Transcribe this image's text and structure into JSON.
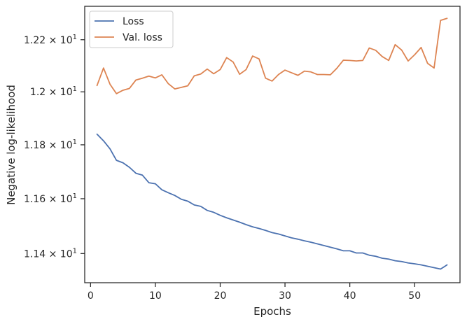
{
  "chart_data": {
    "type": "line",
    "xlabel": "Epochs",
    "ylabel": "Negative log-likelihood",
    "xlim": [
      -0.9,
      57.0
    ],
    "ylim": [
      11.295,
      12.33
    ],
    "y_scale": "log",
    "grid": false,
    "legend_position": "top-left",
    "x_ticks": [
      {
        "value": 0,
        "label": "0"
      },
      {
        "value": 10,
        "label": "10"
      },
      {
        "value": 20,
        "label": "20"
      },
      {
        "value": 30,
        "label": "30"
      },
      {
        "value": 40,
        "label": "40"
      },
      {
        "value": 50,
        "label": "50"
      }
    ],
    "y_ticks": [
      {
        "value": 11.4,
        "mantissa": "1.14",
        "base": "10",
        "exponent": "1"
      },
      {
        "value": 11.6,
        "mantissa": "1.16",
        "base": "10",
        "exponent": "1"
      },
      {
        "value": 11.8,
        "mantissa": "1.18",
        "base": "10",
        "exponent": "1"
      },
      {
        "value": 12.0,
        "mantissa": "1.2",
        "base": "10",
        "exponent": "1"
      },
      {
        "value": 12.2,
        "mantissa": "1.22",
        "base": "10",
        "exponent": "1"
      }
    ],
    "x": [
      1,
      2,
      3,
      4,
      5,
      6,
      7,
      8,
      9,
      10,
      11,
      12,
      13,
      14,
      15,
      16,
      17,
      18,
      19,
      20,
      21,
      22,
      23,
      24,
      25,
      26,
      27,
      28,
      29,
      30,
      31,
      32,
      33,
      34,
      35,
      36,
      37,
      38,
      39,
      40,
      41,
      42,
      43,
      44,
      45,
      46,
      47,
      48,
      49,
      50,
      51,
      52,
      53,
      54,
      55
    ],
    "series": [
      {
        "name": "Loss",
        "color": "#4c72b0",
        "values": [
          11.84,
          11.815,
          11.785,
          11.742,
          11.733,
          11.716,
          11.694,
          11.687,
          11.659,
          11.655,
          11.633,
          11.622,
          11.612,
          11.598,
          11.591,
          11.577,
          11.572,
          11.557,
          11.55,
          11.539,
          11.53,
          11.522,
          11.514,
          11.505,
          11.497,
          11.491,
          11.484,
          11.476,
          11.471,
          11.464,
          11.457,
          11.452,
          11.446,
          11.441,
          11.435,
          11.429,
          11.423,
          11.417,
          11.41,
          11.41,
          11.402,
          11.402,
          11.394,
          11.39,
          11.383,
          11.38,
          11.374,
          11.371,
          11.366,
          11.363,
          11.359,
          11.354,
          11.349,
          11.344,
          11.359
        ]
      },
      {
        "name": "Val. loss",
        "color": "#dd8452",
        "values": [
          12.024,
          12.091,
          12.029,
          11.993,
          12.006,
          12.013,
          12.045,
          12.052,
          12.06,
          12.053,
          12.065,
          12.031,
          12.011,
          12.017,
          12.023,
          12.061,
          12.068,
          12.087,
          12.069,
          12.085,
          12.131,
          12.114,
          12.067,
          12.085,
          12.137,
          12.126,
          12.052,
          12.041,
          12.066,
          12.083,
          12.073,
          12.063,
          12.079,
          12.076,
          12.066,
          12.066,
          12.065,
          12.09,
          12.121,
          12.12,
          12.118,
          12.12,
          12.168,
          12.159,
          12.135,
          12.12,
          12.181,
          12.16,
          12.118,
          12.142,
          12.17,
          12.109,
          12.091,
          12.275,
          12.283
        ]
      }
    ]
  }
}
